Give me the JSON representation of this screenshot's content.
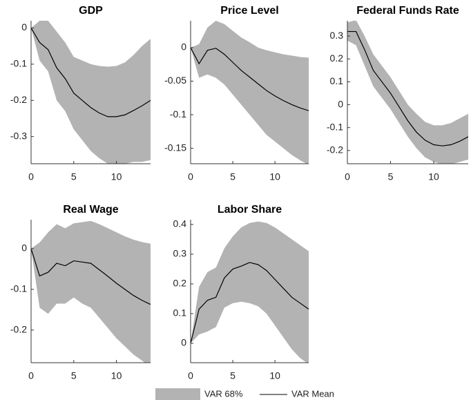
{
  "chart_data": [
    {
      "type": "line",
      "title": "GDP",
      "x": [
        0,
        1,
        2,
        3,
        4,
        5,
        6,
        7,
        8,
        9,
        10,
        11,
        12,
        13,
        14
      ],
      "mean": [
        0,
        -0.04,
        -0.06,
        -0.11,
        -0.14,
        -0.18,
        -0.2,
        -0.22,
        -0.235,
        -0.245,
        -0.245,
        -0.24,
        -0.228,
        -0.215,
        -0.2
      ],
      "upper": [
        0,
        0.02,
        0.02,
        -0.01,
        -0.04,
        -0.08,
        -0.09,
        -0.1,
        -0.105,
        -0.107,
        -0.105,
        -0.095,
        -0.075,
        -0.05,
        -0.03
      ],
      "lower": [
        0,
        -0.09,
        -0.12,
        -0.2,
        -0.23,
        -0.28,
        -0.31,
        -0.34,
        -0.36,
        -0.375,
        -0.38,
        -0.375,
        -0.37,
        -0.37,
        -0.365
      ],
      "xlim": [
        0,
        14
      ],
      "xticks": [
        0,
        5,
        10
      ],
      "ylim": [
        -0.375,
        0.02
      ],
      "yticks": [
        -0.3,
        -0.2,
        -0.1,
        0
      ]
    },
    {
      "type": "line",
      "title": "Price Level",
      "x": [
        0,
        1,
        2,
        3,
        4,
        5,
        6,
        7,
        8,
        9,
        10,
        11,
        12,
        13,
        14
      ],
      "mean": [
        0,
        -0.024,
        -0.004,
        -0.001,
        -0.01,
        -0.022,
        -0.034,
        -0.044,
        -0.054,
        -0.064,
        -0.072,
        -0.079,
        -0.085,
        -0.09,
        -0.094
      ],
      "upper": [
        0,
        0.005,
        0.03,
        0.04,
        0.035,
        0.025,
        0.015,
        0.008,
        0,
        -0.004,
        -0.007,
        -0.01,
        -0.012,
        -0.014,
        -0.015
      ],
      "lower": [
        0,
        -0.045,
        -0.04,
        -0.045,
        -0.055,
        -0.07,
        -0.085,
        -0.1,
        -0.115,
        -0.13,
        -0.14,
        -0.15,
        -0.16,
        -0.168,
        -0.175
      ],
      "xlim": [
        0,
        14
      ],
      "xticks": [
        0,
        5,
        10
      ],
      "ylim": [
        -0.173,
        0.04
      ],
      "yticks": [
        -0.15,
        -0.1,
        -0.05,
        0
      ]
    },
    {
      "type": "line",
      "title": "Federal Funds Rate",
      "x": [
        0,
        1,
        2,
        3,
        4,
        5,
        6,
        7,
        8,
        9,
        10,
        11,
        12,
        13,
        14
      ],
      "mean": [
        0.32,
        0.32,
        0.24,
        0.15,
        0.1,
        0.05,
        -0.01,
        -0.07,
        -0.12,
        -0.155,
        -0.175,
        -0.18,
        -0.175,
        -0.16,
        -0.14
      ],
      "upper": [
        0.36,
        0.37,
        0.3,
        0.22,
        0.17,
        0.12,
        0.06,
        0,
        -0.04,
        -0.075,
        -0.09,
        -0.09,
        -0.08,
        -0.06,
        -0.04
      ],
      "lower": [
        0.28,
        0.26,
        0.17,
        0.08,
        0.03,
        -0.02,
        -0.08,
        -0.14,
        -0.19,
        -0.23,
        -0.25,
        -0.26,
        -0.26,
        -0.25,
        -0.24
      ],
      "xlim": [
        0,
        14
      ],
      "xticks": [
        0,
        5,
        10
      ],
      "ylim": [
        -0.258,
        0.367
      ],
      "yticks": [
        -0.2,
        -0.1,
        0,
        0.1,
        0.2,
        0.3
      ]
    },
    {
      "type": "line",
      "title": "Real Wage",
      "x": [
        0,
        1,
        2,
        3,
        4,
        5,
        6,
        7,
        8,
        9,
        10,
        11,
        12,
        13,
        14
      ],
      "mean": [
        0,
        -0.067,
        -0.058,
        -0.036,
        -0.042,
        -0.03,
        -0.033,
        -0.036,
        -0.052,
        -0.068,
        -0.085,
        -0.1,
        -0.115,
        -0.127,
        -0.137
      ],
      "upper": [
        0,
        0.015,
        0.04,
        0.06,
        0.05,
        0.062,
        0.065,
        0.068,
        0.06,
        0.05,
        0.04,
        0.03,
        0.022,
        0.016,
        0.012
      ],
      "lower": [
        0,
        -0.145,
        -0.16,
        -0.135,
        -0.135,
        -0.12,
        -0.135,
        -0.145,
        -0.17,
        -0.195,
        -0.22,
        -0.24,
        -0.26,
        -0.275,
        -0.29
      ],
      "xlim": [
        0,
        14
      ],
      "xticks": [
        0,
        5,
        10
      ],
      "ylim": [
        -0.28,
        0.071
      ],
      "yticks": [
        -0.2,
        -0.1,
        0
      ]
    },
    {
      "type": "line",
      "title": "Labor Share",
      "x": [
        0,
        1,
        2,
        3,
        4,
        5,
        6,
        7,
        8,
        9,
        10,
        11,
        12,
        13,
        14
      ],
      "mean": [
        0,
        0.115,
        0.145,
        0.155,
        0.22,
        0.25,
        0.26,
        0.272,
        0.265,
        0.245,
        0.215,
        0.185,
        0.155,
        0.135,
        0.115
      ],
      "upper": [
        0,
        0.19,
        0.24,
        0.255,
        0.32,
        0.36,
        0.39,
        0.405,
        0.41,
        0.405,
        0.39,
        0.37,
        0.35,
        0.33,
        0.31
      ],
      "lower": [
        0,
        0.03,
        0.04,
        0.055,
        0.12,
        0.135,
        0.14,
        0.135,
        0.125,
        0.1,
        0.06,
        0.02,
        -0.02,
        -0.05,
        -0.07
      ],
      "xlim": [
        0,
        14
      ],
      "xticks": [
        0,
        5,
        10
      ],
      "ylim": [
        -0.065,
        0.416
      ],
      "yticks": [
        0,
        0.1,
        0.2,
        0.3,
        0.4
      ]
    }
  ],
  "legend": {
    "band": {
      "label": "VAR 68%",
      "color": "#b3b3b3"
    },
    "mean": {
      "label": "VAR Mean",
      "color": "#000000"
    }
  }
}
